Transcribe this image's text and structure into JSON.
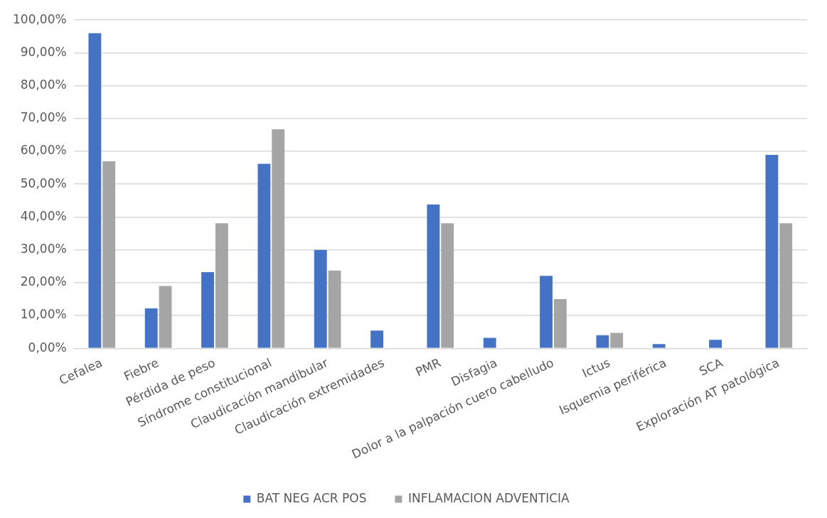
{
  "chart_data": {
    "type": "bar",
    "categories": [
      "Cefalea",
      "Fiebre",
      "Pérdida de peso",
      "Síndrome constitucional",
      "Claudicación mandibular",
      "Claudicación extremidades",
      "PMR",
      "Disfagia",
      "Dolor a la palpación cuero cabelludo",
      "Ictus",
      "Isquemia periférica",
      "SCA",
      "Exploración AT patológica"
    ],
    "series": [
      {
        "name": "BAT NEG ACR POS",
        "color": "#4472c4",
        "values": [
          96.0,
          12.2,
          23.2,
          56.2,
          30.0,
          5.4,
          43.8,
          3.2,
          22.1,
          4.0,
          1.3,
          2.6,
          58.9
        ]
      },
      {
        "name": "INFLAMACION ADVENTICIA",
        "color": "#a5a5a5",
        "values": [
          57.0,
          19.0,
          38.1,
          66.7,
          23.7,
          null,
          38.1,
          null,
          15.0,
          4.7,
          null,
          null,
          38.1
        ]
      }
    ],
    "ylim": [
      0,
      100
    ],
    "yticks": [
      {
        "value": 0,
        "label": "0,00%"
      },
      {
        "value": 10,
        "label": "10,00%"
      },
      {
        "value": 20,
        "label": "20,00%"
      },
      {
        "value": 30,
        "label": "30,00%"
      },
      {
        "value": 40,
        "label": "40,00%"
      },
      {
        "value": 50,
        "label": "50,00%"
      },
      {
        "value": 60,
        "label": "60,00%"
      },
      {
        "value": 70,
        "label": "70,00%"
      },
      {
        "value": 80,
        "label": "80,00%"
      },
      {
        "value": 90,
        "label": "90,00%"
      },
      {
        "value": 100,
        "label": "100,00%"
      }
    ],
    "grid": "y",
    "legend": "bottom"
  }
}
